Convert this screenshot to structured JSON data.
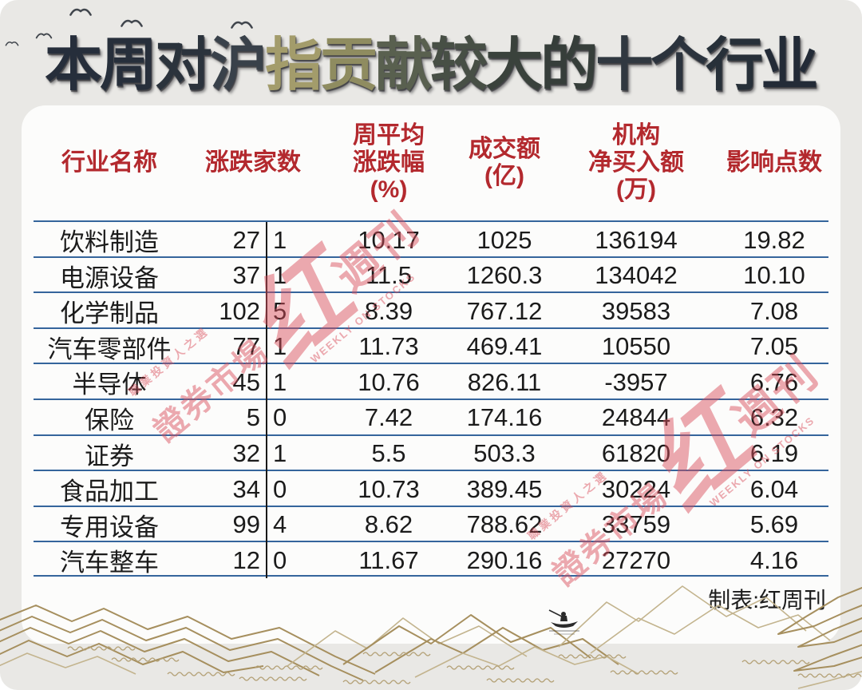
{
  "title": {
    "text": "本周对沪指贡献较大的十个行业",
    "chars": [
      {
        "ch": "本",
        "color": "#262e3b"
      },
      {
        "ch": "周",
        "color": "#272f3b"
      },
      {
        "ch": "对",
        "color": "#2b333c"
      },
      {
        "ch": "沪",
        "color": "#39414a"
      },
      {
        "ch": "指",
        "color": "#a39c6b"
      },
      {
        "ch": "贡",
        "color": "#8f8c60"
      },
      {
        "ch": "献",
        "color": "#59604f"
      },
      {
        "ch": "较",
        "color": "#474f45"
      },
      {
        "ch": "大",
        "color": "#3a423c"
      },
      {
        "ch": "的",
        "color": "#363e3a"
      },
      {
        "ch": "十",
        "color": "#303840"
      },
      {
        "ch": "个",
        "color": "#2b333d"
      },
      {
        "ch": "行",
        "color": "#273039"
      },
      {
        "ch": "业",
        "color": "#232b37"
      }
    ]
  },
  "table": {
    "headers": {
      "industry": [
        "行业名称"
      ],
      "updown": [
        "涨跌家数"
      ],
      "pct": [
        "周平均",
        "涨跌幅",
        "(%)"
      ],
      "volume": [
        "成交额",
        "(亿)"
      ],
      "net": [
        "机构",
        "净买入额",
        "(万)"
      ],
      "impact": [
        "影响点数"
      ]
    },
    "rows": [
      {
        "industry": "饮料制造",
        "up": "27",
        "down": "1",
        "pct": "10.17",
        "volume": "1025",
        "net": "136194",
        "impact": "19.82"
      },
      {
        "industry": "电源设备",
        "up": "37",
        "down": "1",
        "pct": "11.5",
        "volume": "1260.3",
        "net": "134042",
        "impact": "10.10"
      },
      {
        "industry": "化学制品",
        "up": "102",
        "down": "5",
        "pct": "8.39",
        "volume": "767.12",
        "net": "39583",
        "impact": "7.08"
      },
      {
        "industry": "汽车零部件",
        "up": "77",
        "down": "1",
        "pct": "11.73",
        "volume": "469.41",
        "net": "10550",
        "impact": "7.05"
      },
      {
        "industry": "半导体",
        "up": "45",
        "down": "1",
        "pct": "10.76",
        "volume": "826.11",
        "net": "-3957",
        "impact": "6.76"
      },
      {
        "industry": "保险",
        "up": "5",
        "down": "0",
        "pct": "7.42",
        "volume": "174.16",
        "net": "24844",
        "impact": "6.32"
      },
      {
        "industry": "证券",
        "up": "32",
        "down": "1",
        "pct": "5.5",
        "volume": "503.3",
        "net": "61820",
        "impact": "6.19"
      },
      {
        "industry": "食品加工",
        "up": "34",
        "down": "0",
        "pct": "10.73",
        "volume": "389.45",
        "net": "30224",
        "impact": "6.04"
      },
      {
        "industry": "专用设备",
        "up": "99",
        "down": "4",
        "pct": "8.62",
        "volume": "788.62",
        "net": "33759",
        "impact": "5.69"
      },
      {
        "industry": "汽车整车",
        "up": "12",
        "down": "0",
        "pct": "11.67",
        "volume": "290.16",
        "net": "27270",
        "impact": "4.16"
      }
    ]
  },
  "footer": {
    "credit": "制表:红周刊"
  },
  "watermark": {
    "prefix": "證券市場",
    "big": "红",
    "suffix": "週刊",
    "caption_top": "職業投資人之選",
    "caption_bottom": "WEEKLY ON STOCKS"
  },
  "icons": {
    "bird": "bird-silhouette",
    "boat": "fisherman-boat"
  },
  "colors": {
    "background": "#e9e8e5",
    "panel": "#fcfcfb",
    "header_text": "#b3292e",
    "body_text": "#1b1b1b",
    "divider": "#35659c",
    "updown_bar": "#191919",
    "watermark": "#d94f5c",
    "landscape": "#a68f5e"
  },
  "chart_data": {
    "type": "table",
    "title": "本周对沪指贡献较大的十个行业",
    "columns": [
      "行业名称",
      "涨跌家数",
      "周平均涨跌幅(%)",
      "成交额(亿)",
      "机构净买入额(万)",
      "影响点数"
    ],
    "rows": [
      [
        "饮料制造",
        "27|1",
        "10.17",
        "1025",
        "136194",
        "19.82"
      ],
      [
        "电源设备",
        "37|1",
        "11.5",
        "1260.3",
        "134042",
        "10.10"
      ],
      [
        "化学制品",
        "102|5",
        "8.39",
        "767.12",
        "39583",
        "7.08"
      ],
      [
        "汽车零部件",
        "77|1",
        "11.73",
        "469.41",
        "10550",
        "7.05"
      ],
      [
        "半导体",
        "45|1",
        "10.76",
        "826.11",
        "-3957",
        "6.76"
      ],
      [
        "保险",
        "5|0",
        "7.42",
        "174.16",
        "24844",
        "6.32"
      ],
      [
        "证券",
        "32|1",
        "5.5",
        "503.3",
        "61820",
        "6.19"
      ],
      [
        "食品加工",
        "34|0",
        "10.73",
        "389.45",
        "30224",
        "6.04"
      ],
      [
        "专用设备",
        "99|4",
        "8.62",
        "788.62",
        "33759",
        "5.69"
      ],
      [
        "汽车整车",
        "12|0",
        "11.67",
        "290.16",
        "27270",
        "4.16"
      ]
    ],
    "source": "制表:红周刊",
    "legend_position": "none",
    "grid": "horizontal-dividers"
  }
}
